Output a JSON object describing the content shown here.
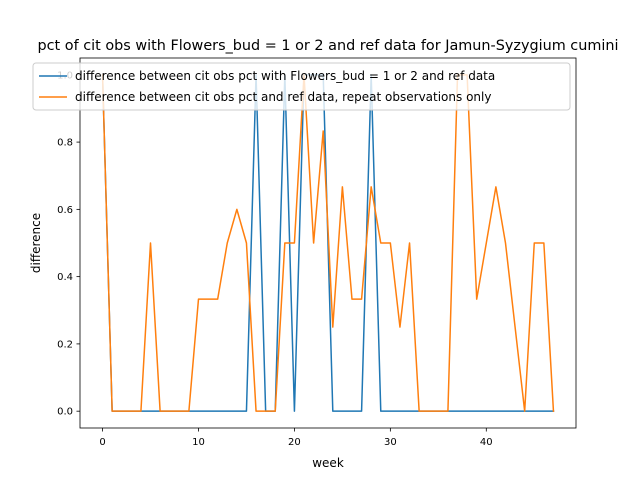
{
  "chart_data": {
    "type": "line",
    "title": "pct of cit obs with Flowers_bud = 1 or 2 and ref data for Jamun-Syzygium cumini",
    "xlabel": "week",
    "ylabel": "difference",
    "xlim": [
      -2.35,
      49.35
    ],
    "ylim": [
      -0.05,
      1.05
    ],
    "xticks": [
      0,
      10,
      20,
      30,
      40
    ],
    "yticks": [
      0.0,
      0.2,
      0.4,
      0.6,
      0.8,
      1.0
    ],
    "xtick_labels": [
      "0",
      "10",
      "20",
      "30",
      "40"
    ],
    "ytick_labels": [
      "0.0",
      "0.2",
      "0.4",
      "0.6",
      "0.8",
      "1.0"
    ],
    "legend": "top-left",
    "grid": false,
    "series": [
      {
        "name": "difference between cit obs pct with Flowers_bud = 1 or 2 and ref data",
        "color": "#1f77b4",
        "x": [
          0,
          1,
          2,
          3,
          4,
          5,
          6,
          7,
          8,
          9,
          10,
          11,
          12,
          13,
          14,
          15,
          16,
          17,
          18,
          19,
          20,
          21,
          22,
          23,
          24,
          25,
          26,
          27,
          28,
          29,
          30,
          31,
          32,
          33,
          34,
          35,
          36,
          37,
          38,
          39,
          40,
          41,
          42,
          43,
          44,
          45,
          46,
          47
        ],
        "values": [
          1,
          0,
          0,
          0,
          0,
          0,
          0,
          0,
          0,
          0,
          0,
          0,
          0,
          0,
          0,
          0,
          1,
          0,
          0,
          1,
          0,
          1,
          1,
          1,
          0,
          0,
          0,
          0,
          1,
          0,
          0,
          0,
          0,
          0,
          0,
          0,
          0,
          0,
          0,
          0,
          0,
          0,
          0,
          0,
          0,
          0,
          0,
          0
        ]
      },
      {
        "name": "difference between cit obs pct and ref data, repeat observations only",
        "color": "#ff7f0e",
        "x": [
          0,
          1,
          2,
          3,
          4,
          5,
          6,
          7,
          8,
          9,
          10,
          11,
          12,
          13,
          14,
          15,
          16,
          17,
          18,
          19,
          20,
          21,
          22,
          23,
          24,
          25,
          26,
          27,
          28,
          29,
          30,
          31,
          32,
          33,
          34,
          35,
          36,
          37,
          38,
          39,
          40,
          41,
          42,
          43,
          44,
          45,
          46,
          47
        ],
        "values": [
          1,
          0,
          0,
          0,
          0,
          0.5,
          0,
          0,
          0,
          0,
          0.333,
          0.333,
          0.333,
          0.5,
          0.6,
          0.5,
          0,
          0,
          0,
          0.5,
          0.5,
          1,
          0.5,
          0.833,
          0.25,
          0.667,
          0.333,
          0.333,
          0.667,
          0.5,
          0.5,
          0.25,
          0.5,
          0,
          0,
          0,
          0,
          1,
          1,
          0.333,
          0.5,
          0.667,
          0.5,
          0.25,
          0,
          0.5,
          0.5,
          0
        ]
      }
    ]
  }
}
